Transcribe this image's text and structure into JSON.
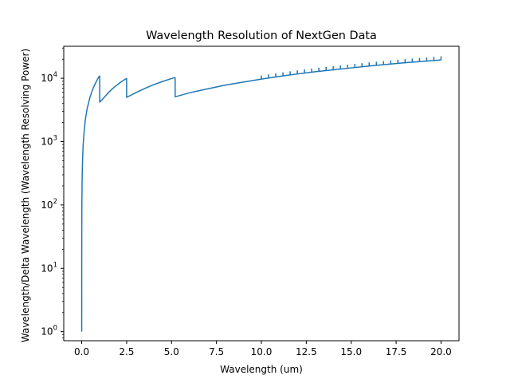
{
  "chart_data": {
    "type": "line",
    "title": "Wavelength Resolution of NextGen Data",
    "xlabel": "Wavelength (um)",
    "ylabel": "Wavelength/Delta Wavelength (Wavelength Resolving Power)",
    "xlim": [
      -1.0,
      21.0
    ],
    "ylim": [
      0.72,
      32000
    ],
    "yscale": "log",
    "x_ticks": [
      0.0,
      2.5,
      5.0,
      7.5,
      10.0,
      12.5,
      15.0,
      17.5,
      20.0
    ],
    "x_tick_labels": [
      "0.0",
      "2.5",
      "5.0",
      "7.5",
      "10.0",
      "12.5",
      "15.0",
      "17.5",
      "20.0"
    ],
    "y_ticks": [
      1,
      10,
      100,
      1000,
      10000
    ],
    "y_tick_labels": [
      {
        "base": "10",
        "exp": "0"
      },
      {
        "base": "10",
        "exp": "1"
      },
      {
        "base": "10",
        "exp": "2"
      },
      {
        "base": "10",
        "exp": "3"
      },
      {
        "base": "10",
        "exp": "4"
      }
    ],
    "grid": false,
    "color": "#1f77b4",
    "series": [
      {
        "segments": [
          {
            "x": [
              0.0,
              0.001,
              0.002,
              0.005,
              0.01,
              0.02,
              0.03,
              0.05,
              0.08,
              0.12,
              0.2,
              0.3,
              0.45,
              0.6,
              0.75,
              0.9,
              1.0
            ],
            "y": [
              1,
              11,
              22,
              55,
              110,
              220,
              330,
              550,
              880,
              1300,
              2200,
              3300,
              4900,
              6600,
              8200,
              9900,
              11000
            ]
          },
          {
            "x": [
              1.0,
              1.0,
              1.2,
              1.5,
              1.8,
              2.1,
              2.3,
              2.5
            ],
            "y": [
              11000,
              4200,
              4800,
              6000,
              7200,
              8400,
              9200,
              10000
            ]
          },
          {
            "x": [
              2.5,
              2.5,
              3.0,
              3.5,
              4.0,
              4.5,
              5.0,
              5.2
            ],
            "y": [
              10000,
              5000,
              5900,
              6900,
              7900,
              8900,
              9900,
              10300
            ]
          },
          {
            "x": [
              5.2,
              5.2,
              6.0,
              7.0,
              8.0,
              9.0,
              10.0,
              11.0,
              12.0,
              13.0,
              14.0,
              15.0,
              16.0,
              17.0,
              18.0,
              19.0,
              20.0
            ],
            "y": [
              10300,
              5100,
              5900,
              6800,
              7800,
              8700,
              9700,
              10700,
              11700,
              12700,
              13600,
              14600,
              15600,
              16600,
              17600,
              18500,
              19500
            ]
          }
        ],
        "spikes": {
          "x_start": 10.0,
          "x_end": 20.0,
          "count": 26,
          "ratio": 1.14
        }
      }
    ]
  }
}
